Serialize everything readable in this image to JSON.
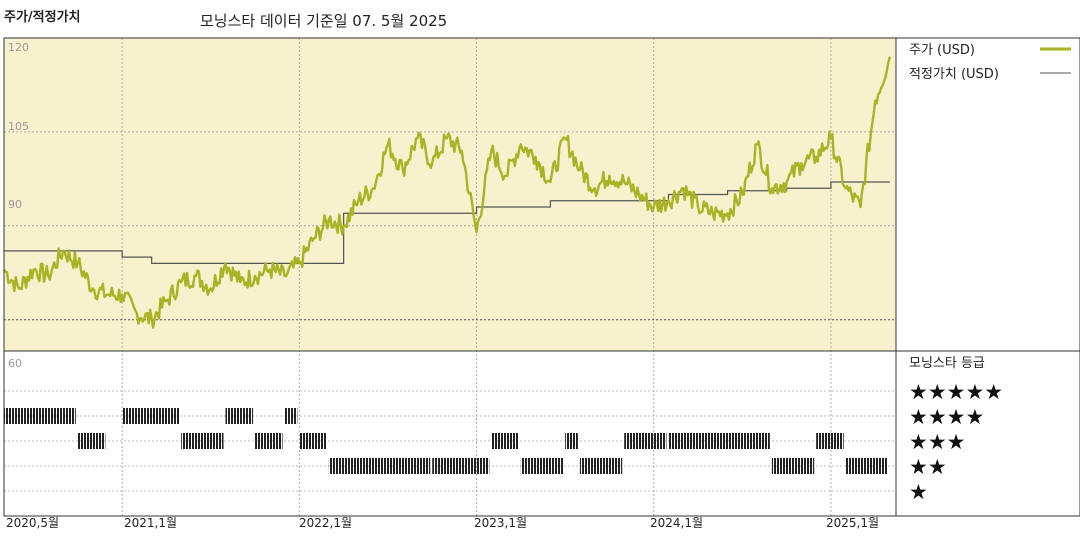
{
  "header": {
    "title": "주가/적정가치",
    "subtitle": "모닝스타 데이터 기준일 07. 5월 2025"
  },
  "chart_data": {
    "type": "line",
    "ylim": [
      70,
      120
    ],
    "y_ticks": [
      "120",
      "105",
      "90"
    ],
    "x_ticks": [
      "2020,5월",
      "2021,1월",
      "2022,1월",
      "2023,1월",
      "2024,1월",
      "2025,1월"
    ],
    "x_tick_dates": [
      "2020-05",
      "2021-01",
      "2022-01",
      "2023-01",
      "2024-01",
      "2025-01"
    ],
    "colors": {
      "price": "#aab325",
      "fair_value": "#555555",
      "panel_bg": "#f7f2cd"
    },
    "series": [
      {
        "name": "주가 (USD)",
        "x": [
          "2020-05",
          "2020-06",
          "2020-07",
          "2020-08",
          "2020-09",
          "2020-10",
          "2020-11",
          "2020-12",
          "2021-01",
          "2021-02",
          "2021-03",
          "2021-04",
          "2021-05",
          "2021-06",
          "2021-07",
          "2021-08",
          "2021-09",
          "2021-10",
          "2021-11",
          "2021-12",
          "2022-01",
          "2022-02",
          "2022-03",
          "2022-04",
          "2022-05",
          "2022-06",
          "2022-07",
          "2022-08",
          "2022-09",
          "2022-10",
          "2022-11",
          "2022-12",
          "2023-01",
          "2023-02",
          "2023-03",
          "2023-04",
          "2023-05",
          "2023-06",
          "2023-07",
          "2023-08",
          "2023-09",
          "2023-10",
          "2023-11",
          "2023-12",
          "2024-01",
          "2024-02",
          "2024-03",
          "2024-04",
          "2024-05",
          "2024-06",
          "2024-07",
          "2024-08",
          "2024-09",
          "2024-10",
          "2024-11",
          "2024-12",
          "2025-01",
          "2025-02",
          "2025-03",
          "2025-04",
          "2025-05"
        ],
        "values": [
          83,
          80,
          83,
          82,
          86,
          84,
          80,
          79,
          79,
          76,
          75,
          78,
          81,
          82,
          80,
          84,
          81,
          82,
          83,
          82,
          84,
          88,
          91,
          90,
          94,
          96,
          103,
          99,
          104,
          100,
          104,
          102,
          89,
          102,
          98,
          103,
          101,
          97,
          104,
          99,
          96,
          98,
          97,
          95,
          93,
          94,
          96,
          93,
          92,
          92,
          95,
          103,
          96,
          97,
          100,
          101,
          104,
          96,
          93,
          110,
          117
        ]
      },
      {
        "name": "적정가치 (USD)",
        "x": [
          "2020-05",
          "2020-12",
          "2021-01",
          "2021-03",
          "2021-06",
          "2021-12",
          "2022-03",
          "2022-04",
          "2022-12",
          "2023-01",
          "2023-04",
          "2023-06",
          "2023-10",
          "2024-02",
          "2024-06",
          "2024-10",
          "2025-01",
          "2025-05"
        ],
        "values": [
          86,
          86,
          85,
          84,
          84,
          84,
          84,
          92,
          92,
          93,
          93,
          94,
          94,
          95,
          95.6,
          96,
          97,
          97
        ]
      }
    ],
    "ratings": {
      "title": "모닝스타 등급",
      "levels": [
        "★★★★★",
        "★★★★",
        "★★★",
        "★★",
        "★"
      ],
      "segments": [
        {
          "rating": 4,
          "start": "2020-05",
          "end": "2020-10"
        },
        {
          "rating": 3,
          "start": "2020-10",
          "end": "2020-12"
        },
        {
          "rating": 4,
          "start": "2021-01",
          "end": "2021-05"
        },
        {
          "rating": 3,
          "start": "2021-05",
          "end": "2021-08"
        },
        {
          "rating": 4,
          "start": "2021-08",
          "end": "2021-10"
        },
        {
          "rating": 3,
          "start": "2021-10",
          "end": "2021-12"
        },
        {
          "rating": 4,
          "start": "2021-12",
          "end": "2022-01"
        },
        {
          "rating": 3,
          "start": "2022-01",
          "end": "2022-03"
        },
        {
          "rating": 2,
          "start": "2022-03",
          "end": "2022-10"
        },
        {
          "rating": 2,
          "start": "2022-10",
          "end": "2023-02"
        },
        {
          "rating": 3,
          "start": "2023-02",
          "end": "2023-04"
        },
        {
          "rating": 2,
          "start": "2023-04",
          "end": "2023-07"
        },
        {
          "rating": 3,
          "start": "2023-07",
          "end": "2023-08"
        },
        {
          "rating": 2,
          "start": "2023-08",
          "end": "2023-11"
        },
        {
          "rating": 3,
          "start": "2023-11",
          "end": "2024-02"
        },
        {
          "rating": 3,
          "start": "2024-02",
          "end": "2024-09"
        },
        {
          "rating": 2,
          "start": "2024-09",
          "end": "2024-12"
        },
        {
          "rating": 3,
          "start": "2024-12",
          "end": "2025-02"
        },
        {
          "rating": 2,
          "start": "2025-02",
          "end": "2025-05"
        }
      ]
    }
  }
}
